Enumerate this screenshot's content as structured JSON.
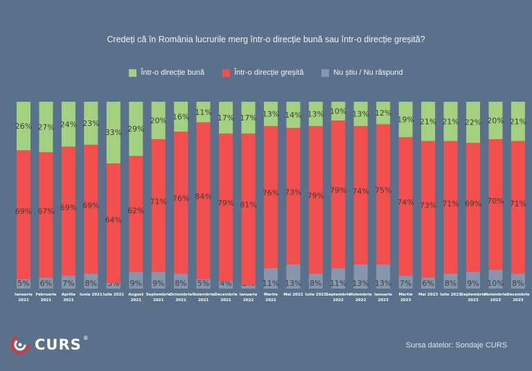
{
  "colors": {
    "background": "#5a718b",
    "good": "#a3d17f",
    "wrong": "#f34f4f",
    "dontknow": "#8796ad"
  },
  "logo": {
    "text": "CURS",
    "reg": "®",
    "icon": "curs-swirl-icon"
  },
  "source": "Sursa datelor: Sondaje CURS",
  "chart_data": {
    "type": "bar",
    "stacked": true,
    "title": "Credeți că în România lucrurile merg într-o direcție bună sau într-o direcție greșită?",
    "legend": [
      "Într-o direcție bună",
      "Într-o direcție greșită",
      "Nu știu / Nu răspund"
    ],
    "legend_position": "top-center",
    "categories": [
      [
        "Ianuarie",
        "2021"
      ],
      [
        "Februarie",
        "2021"
      ],
      [
        "Aprilie",
        "2021"
      ],
      [
        "Iunie 2021"
      ],
      [
        "Iulie 2021"
      ],
      [
        "August",
        "2021"
      ],
      [
        "Septembrie",
        "2021"
      ],
      [
        "Octombrie",
        "2021"
      ],
      [
        "Noiembrie",
        "2021"
      ],
      [
        "Decembrie",
        "2021"
      ],
      [
        "Ianuarie",
        "2022"
      ],
      [
        "Martie",
        "2022"
      ],
      [
        "Mai 2022"
      ],
      [
        "Iulie 2022"
      ],
      [
        "Septembrie",
        "2022"
      ],
      [
        "Noiembrie",
        "2022"
      ],
      [
        "Ianuarie",
        "2023"
      ],
      [
        "Martie",
        "2023"
      ],
      [
        "Mai 2023"
      ],
      [
        "Iulie 2023"
      ],
      [
        "Septembrie",
        "2023"
      ],
      [
        "Noiembrie",
        "2023"
      ],
      [
        "Decembrie",
        "2023"
      ]
    ],
    "series": [
      {
        "name": "Nu știu / Nu răspund",
        "values": [
          5,
          6,
          7,
          8,
          3,
          9,
          9,
          8,
          5,
          4,
          2,
          11,
          13,
          8,
          11,
          13,
          13,
          7,
          6,
          8,
          9,
          10,
          8
        ]
      },
      {
        "name": "Într-o direcție greșită",
        "values": [
          69,
          67,
          69,
          69,
          64,
          62,
          71,
          76,
          84,
          79,
          81,
          76,
          73,
          79,
          79,
          74,
          75,
          74,
          73,
          71,
          69,
          70,
          71
        ]
      },
      {
        "name": "Într-o direcție bună",
        "values": [
          26,
          27,
          24,
          23,
          33,
          29,
          20,
          16,
          11,
          17,
          17,
          13,
          14,
          13,
          10,
          13,
          12,
          19,
          21,
          21,
          22,
          20,
          21
        ]
      }
    ],
    "ylim": [
      0,
      100
    ],
    "unit": "%"
  }
}
